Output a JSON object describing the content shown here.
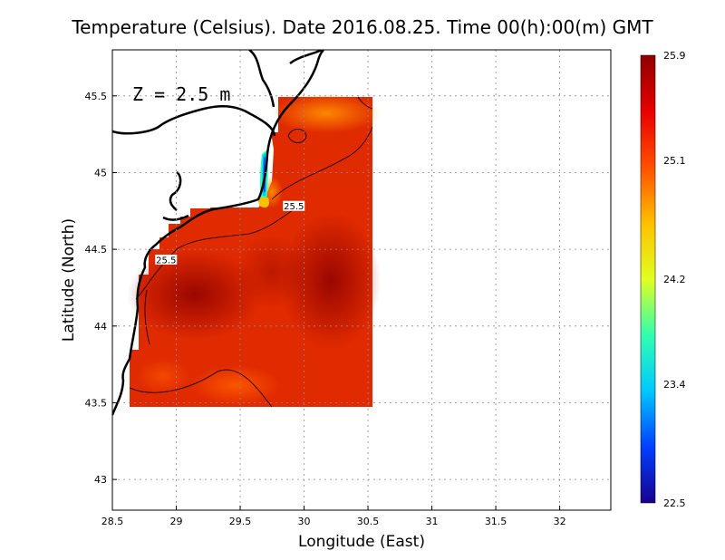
{
  "title": "Temperature (Celsius). Date 2016.08.25. Time 00(h):00(m)  GMT",
  "depth_label": "Z  =  2.5  m",
  "chart_data": {
    "type": "heatmap",
    "xlabel": "Longitude (East)",
    "ylabel": "Latitude (North)",
    "xlim": [
      28.5,
      32.4
    ],
    "ylim": [
      42.8,
      45.8
    ],
    "x_ticks": [
      "28.5",
      "29",
      "29.5",
      "30",
      "30.5",
      "31",
      "31.5",
      "32"
    ],
    "y_ticks": [
      "43",
      "43.5",
      "44",
      "44.5",
      "45",
      "45.5"
    ],
    "grid": true,
    "colorbar": {
      "min": 22.5,
      "max": 25.9,
      "tick_labels": [
        "22.5",
        "23.4",
        "24.2",
        "25.1",
        "25.9"
      ],
      "colors": [
        "#1a0090",
        "#0040ff",
        "#00c8ff",
        "#30ffb0",
        "#e0ff20",
        "#ffc000",
        "#ff5000",
        "#e80000",
        "#8e0000"
      ]
    },
    "contour_labels": [
      {
        "text": "25.5",
        "lon": 29.92,
        "lat": 44.78
      },
      {
        "text": "25.5",
        "lon": 28.92,
        "lat": 44.43
      }
    ]
  }
}
